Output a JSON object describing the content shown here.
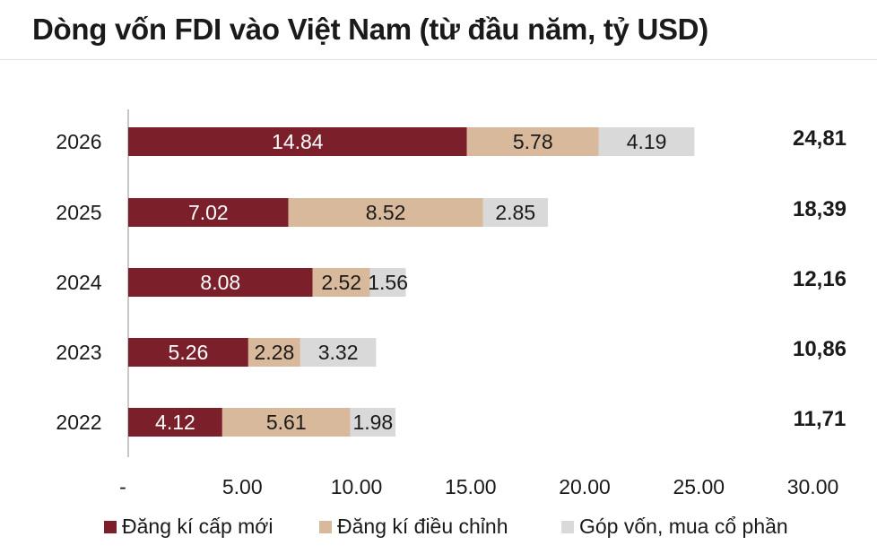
{
  "chart_data": {
    "type": "bar",
    "orientation": "horizontal",
    "stacked": true,
    "title": "Dòng vốn FDI vào Việt Nam (từ đầu năm, tỷ USD)",
    "categories": [
      "2026",
      "2025",
      "2024",
      "2023",
      "2022"
    ],
    "series": [
      {
        "name": "Đăng kí cấp mới",
        "color": "#7b1f2b",
        "label_color": "#ffffff",
        "values": [
          14.84,
          7.02,
          8.08,
          5.26,
          4.12
        ],
        "labels": [
          "14.84",
          "7.02",
          "8.08",
          "5.26",
          "4.12"
        ]
      },
      {
        "name": "Đăng kí điều chỉnh",
        "color": "#d9b99b",
        "label_color": "#1a1a1a",
        "values": [
          5.78,
          8.52,
          2.52,
          2.28,
          5.61
        ],
        "labels": [
          "5.78",
          "8.52",
          "2.52",
          "2.28",
          "5.61"
        ]
      },
      {
        "name": "Góp vốn, mua cổ phần",
        "color": "#d9d9d9",
        "label_color": "#1a1a1a",
        "values": [
          4.19,
          2.85,
          1.56,
          3.32,
          1.98
        ],
        "labels": [
          "4.19",
          "2.85",
          "1.56",
          "3.32",
          "1.98"
        ]
      }
    ],
    "totals": [
      "24,81",
      "18,39",
      "12,16",
      "10,86",
      "11,71"
    ],
    "xlim": [
      0,
      30
    ],
    "xticks": [
      0,
      5,
      10,
      15,
      20,
      25,
      30
    ],
    "xtick_labels": [
      "-",
      "5.00",
      "10.00",
      "15.00",
      "20.00",
      "25.00",
      "30.00"
    ],
    "grid": false,
    "legend_position": "bottom"
  }
}
